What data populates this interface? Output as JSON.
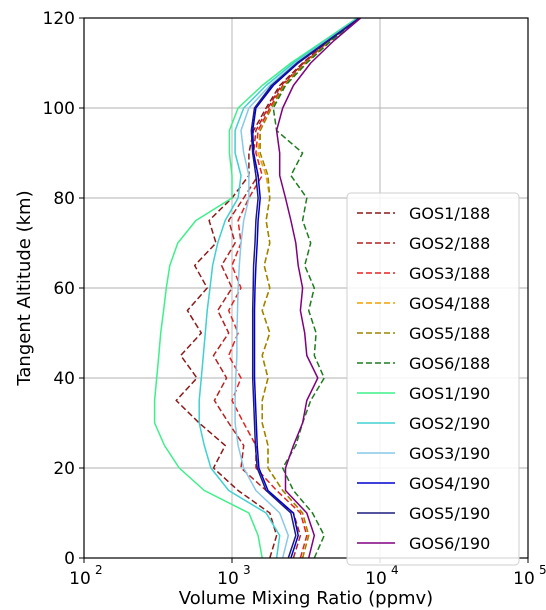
{
  "chart_data": {
    "type": "line",
    "xlabel": "Volume Mixing Ratio (ppmv)",
    "ylabel": "Tangent Altitude (km)",
    "xscale": "log",
    "xlim": [
      100,
      100000
    ],
    "ylim": [
      0,
      120
    ],
    "x_ticks": [
      {
        "value": 100,
        "base": "10",
        "exp": "2"
      },
      {
        "value": 1000,
        "base": "10",
        "exp": "3"
      },
      {
        "value": 10000,
        "base": "10",
        "exp": "4"
      },
      {
        "value": 100000,
        "base": "10",
        "exp": "5"
      }
    ],
    "y_ticks": [
      0,
      20,
      40,
      60,
      80,
      100,
      120
    ],
    "grid": true,
    "legend": "right",
    "altitude_km": [
      0,
      5,
      10,
      15,
      20,
      25,
      30,
      35,
      40,
      45,
      50,
      55,
      60,
      65,
      70,
      75,
      80,
      85,
      90,
      95,
      100,
      105,
      110,
      115,
      120
    ],
    "series": [
      {
        "name": "GOS1/188",
        "color": "#8b1a1a",
        "dash": "6,3",
        "values": [
          1800,
          2000,
          1800,
          1100,
          750,
          900,
          600,
          420,
          580,
          450,
          620,
          500,
          680,
          560,
          780,
          700,
          1000,
          1300,
          1300,
          1400,
          1700,
          2100,
          3000,
          4500,
          7000
        ]
      },
      {
        "name": "GOS2/188",
        "color": "#b22222",
        "dash": "6,3",
        "values": [
          2600,
          2900,
          2600,
          1700,
          1150,
          1200,
          950,
          760,
          920,
          750,
          950,
          800,
          1000,
          850,
          1050,
          950,
          1200,
          1500,
          1400,
          1450,
          1750,
          2150,
          3050,
          4550,
          7050
        ]
      },
      {
        "name": "GOS3/188",
        "color": "#e82020",
        "dash": "6,3",
        "values": [
          2900,
          3200,
          2900,
          2000,
          1450,
          1450,
          1200,
          1000,
          1150,
          950,
          1100,
          950,
          1150,
          1000,
          1150,
          1100,
          1300,
          1600,
          1450,
          1500,
          1800,
          2200,
          3100,
          4600,
          7100
        ]
      },
      {
        "name": "GOS4/188",
        "color": "#f0a000",
        "dash": "6,3",
        "values": [
          3000,
          3300,
          3000,
          2200,
          1750,
          1750,
          1600,
          1600,
          1750,
          1600,
          1800,
          1600,
          1800,
          1650,
          1800,
          1700,
          1800,
          1700,
          1500,
          1550,
          1850,
          2250,
          3150,
          4650,
          7150
        ]
      },
      {
        "name": "GOS5/188",
        "color": "#9b8500",
        "dash": "6,3",
        "values": [
          3000,
          3300,
          3000,
          2200,
          1750,
          1750,
          1600,
          1600,
          1750,
          1600,
          1800,
          1600,
          1800,
          1650,
          1800,
          1700,
          1800,
          1750,
          1550,
          1550,
          1850,
          2250,
          3150,
          4650,
          7150
        ]
      },
      {
        "name": "GOS6/188",
        "color": "#1e7b1e",
        "dash": "6,3",
        "values": [
          3600,
          4200,
          3500,
          2600,
          2200,
          2700,
          3000,
          3400,
          4200,
          3600,
          3700,
          3300,
          3600,
          3100,
          3400,
          3000,
          3200,
          2500,
          3000,
          2000,
          1900,
          2300,
          3200,
          4700,
          7200
        ]
      },
      {
        "name": "GOS1/190",
        "color": "#3ef08a",
        "dash": "",
        "values": [
          1600,
          1500,
          1300,
          650,
          440,
          350,
          300,
          300,
          310,
          320,
          330,
          345,
          360,
          380,
          430,
          570,
          1000,
          1000,
          960,
          960,
          1100,
          1600,
          2500,
          4200,
          7000
        ]
      },
      {
        "name": "GOS2/190",
        "color": "#40d0d0",
        "dash": "",
        "values": [
          2000,
          2100,
          1700,
          950,
          720,
          650,
          600,
          600,
          620,
          640,
          660,
          680,
          710,
          740,
          800,
          900,
          1100,
          1150,
          1050,
          1050,
          1200,
          1700,
          2600,
          4300,
          7100
        ]
      },
      {
        "name": "GOS3/190",
        "color": "#88c8e8",
        "dash": "",
        "values": [
          2200,
          2400,
          2100,
          1450,
          1200,
          1100,
          1050,
          1050,
          1060,
          1080,
          1080,
          1090,
          1100,
          1120,
          1150,
          1200,
          1300,
          1300,
          1200,
          1150,
          1300,
          1800,
          2700,
          4400,
          7200
        ]
      },
      {
        "name": "GOS4/190",
        "color": "#0000cd",
        "dash": "",
        "values": [
          2500,
          2800,
          2600,
          1750,
          1520,
          1480,
          1460,
          1440,
          1420,
          1420,
          1420,
          1420,
          1430,
          1450,
          1480,
          1500,
          1550,
          1500,
          1400,
          1380,
          1450,
          1900,
          2800,
          4500,
          7300
        ]
      },
      {
        "name": "GOS5/190",
        "color": "#1b1b80",
        "dash": "",
        "values": [
          2400,
          2700,
          2500,
          1700,
          1480,
          1440,
          1420,
          1400,
          1380,
          1380,
          1380,
          1380,
          1390,
          1400,
          1430,
          1450,
          1500,
          1450,
          1380,
          1350,
          1420,
          1850,
          2750,
          4450,
          7250
        ]
      },
      {
        "name": "GOS6/190",
        "color": "#800080",
        "dash": "",
        "values": [
          3300,
          3600,
          3200,
          2300,
          2300,
          2600,
          3000,
          3200,
          3800,
          3200,
          3100,
          2900,
          3000,
          2800,
          2700,
          2500,
          2300,
          2100,
          2100,
          2000,
          2200,
          2600,
          3400,
          4900,
          7400
        ]
      }
    ]
  }
}
